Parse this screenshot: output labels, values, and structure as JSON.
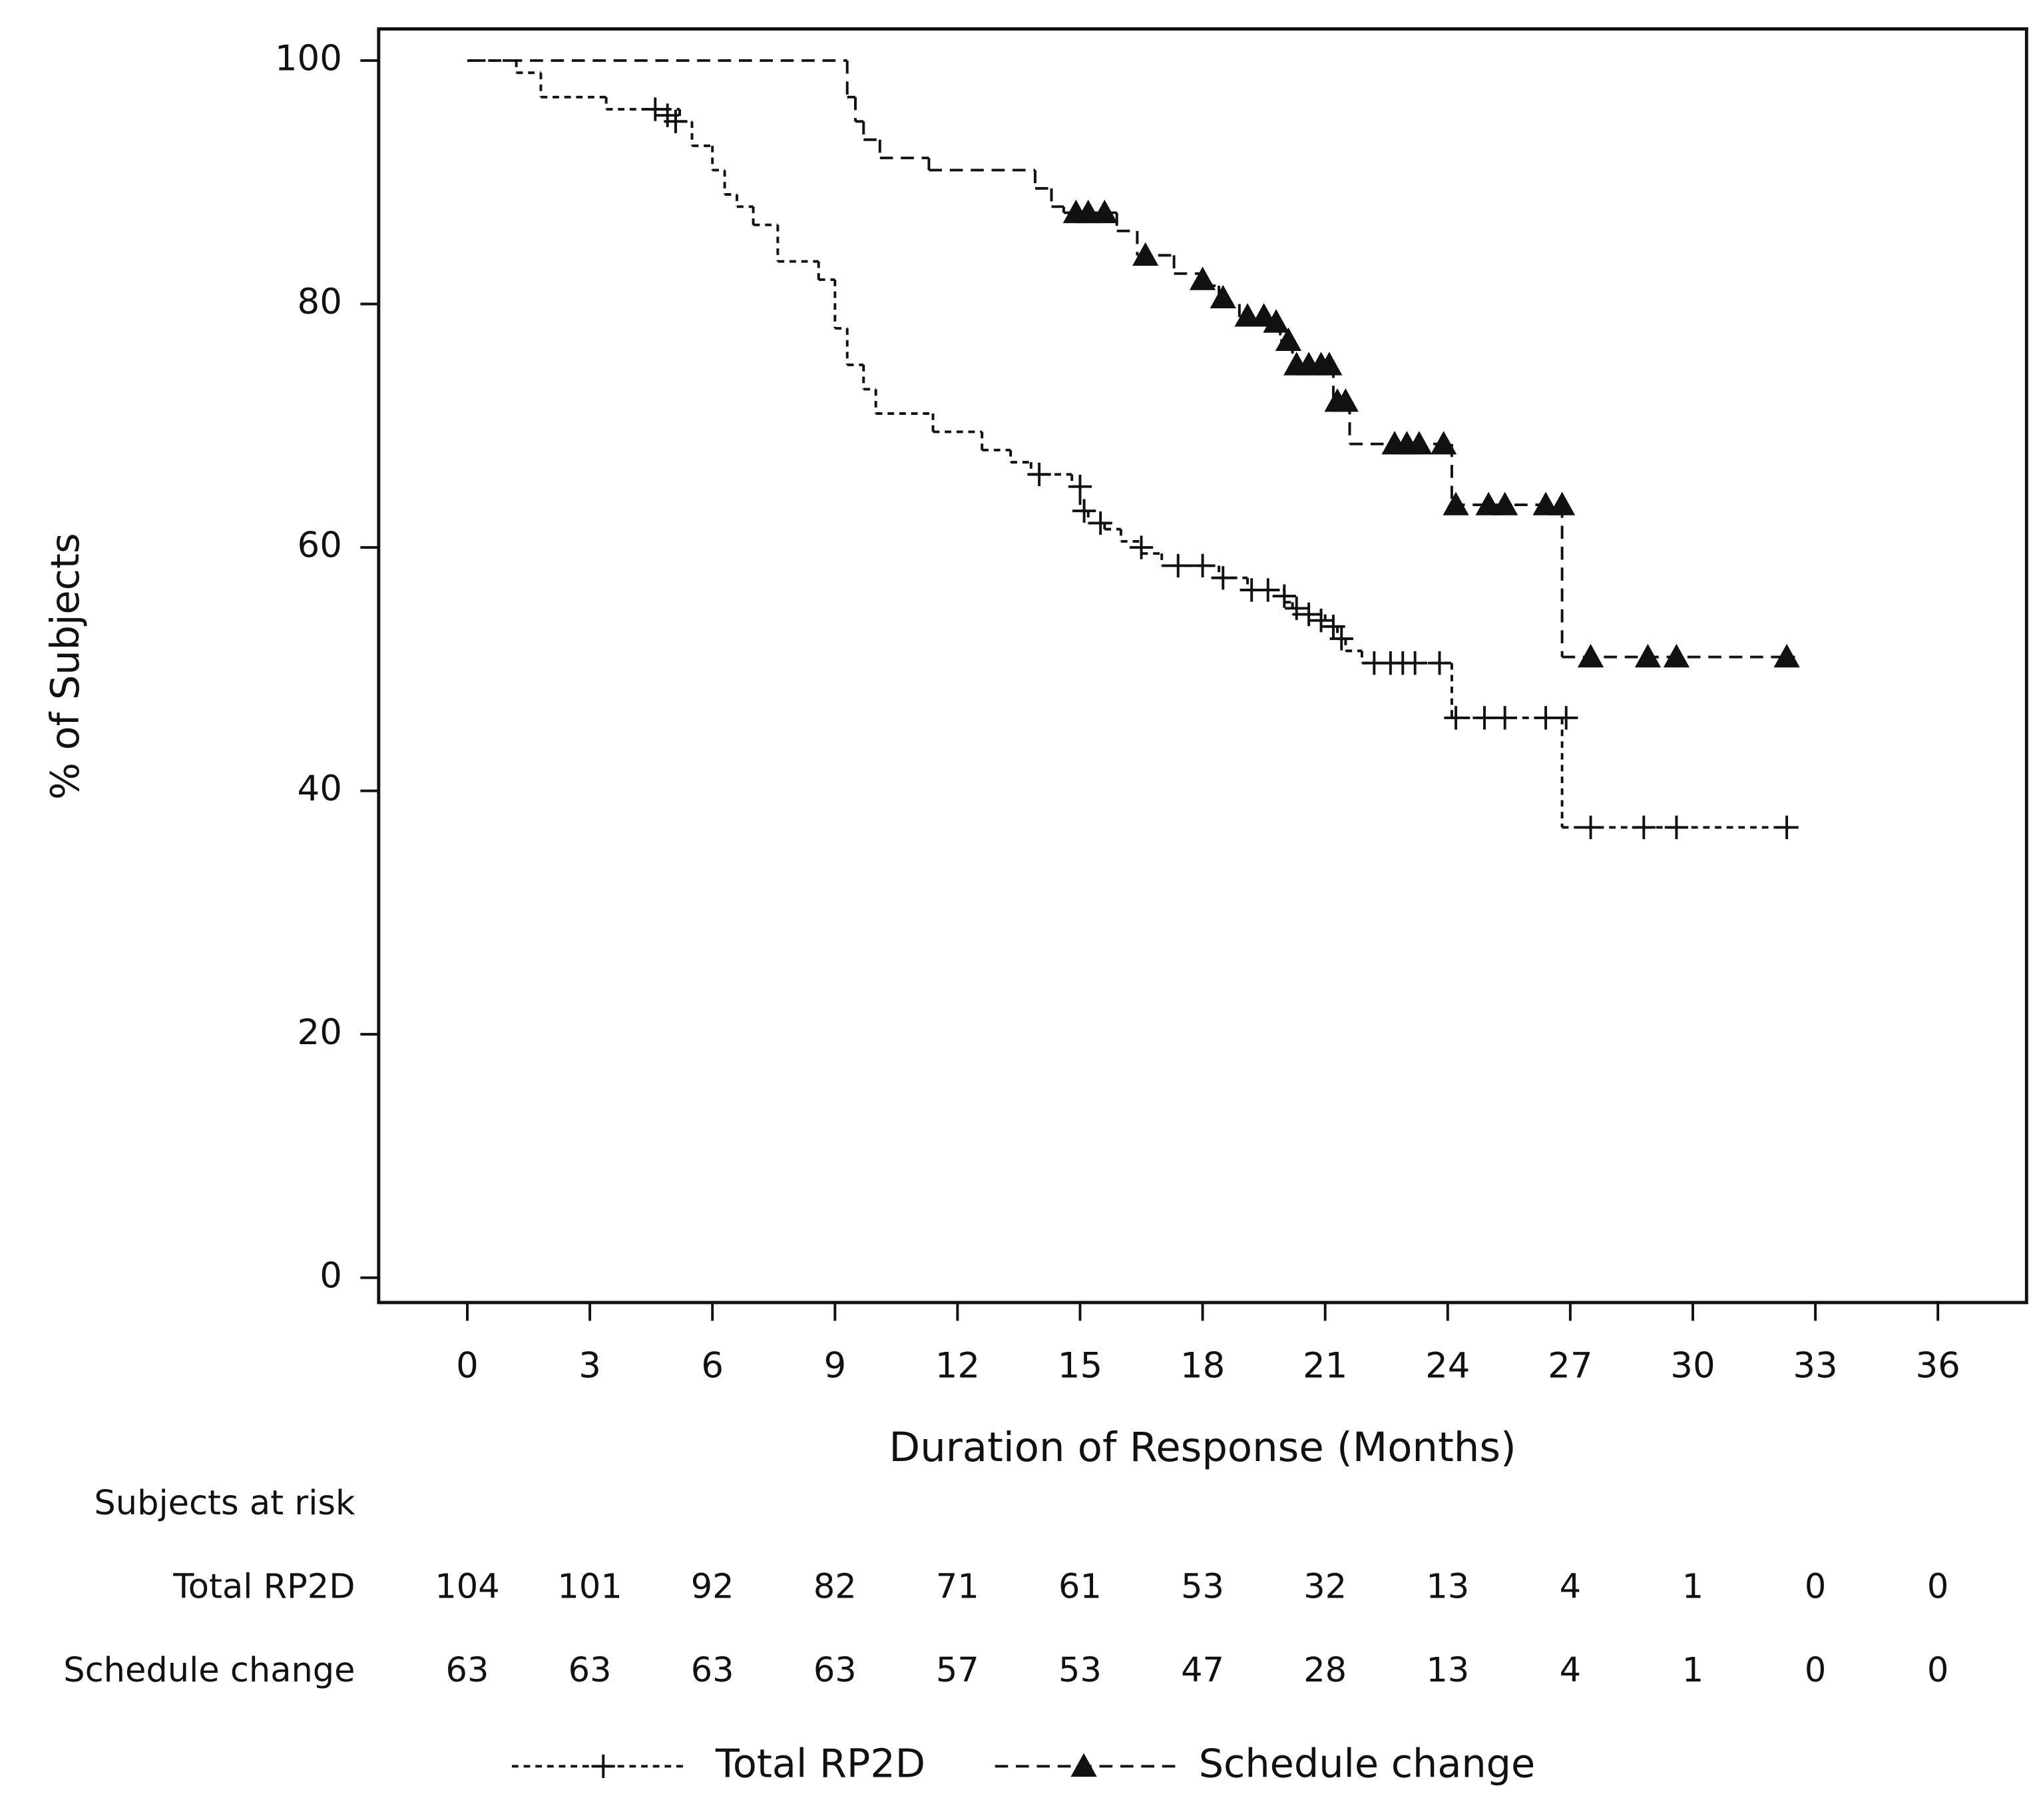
{
  "chart_data": {
    "type": "kaplan-meier",
    "x_label": "Duration of Response (Months)",
    "y_label": "% of Subjects",
    "xlim": [
      -2.17,
      38.17
    ],
    "ylim": [
      -2.04,
      102.6
    ],
    "xticks": [
      0,
      3,
      6,
      9,
      12,
      15,
      18,
      21,
      24,
      27,
      30,
      33,
      36
    ],
    "yticks": [
      0,
      20,
      40,
      60,
      80,
      100
    ],
    "series": [
      {
        "name": "Total RP2D",
        "color": "#111111",
        "marker": "plus",
        "dash": "5 4",
        "x": [
          0,
          1.2,
          1.8,
          3.4,
          5.2,
          5.5,
          6.0,
          6.3,
          6.6,
          7.0,
          7.6,
          8.6,
          9.0,
          9.3,
          9.7,
          10.0,
          11.4,
          12.6,
          13.3,
          13.8,
          14.8,
          15.0,
          15.2,
          15.6,
          16.0,
          16.5,
          17.0,
          18.4,
          19.1,
          20.0,
          20.2,
          21.0,
          21.3,
          21.5,
          21.9,
          24.1,
          26.8,
          32.5
        ],
        "values": [
          100,
          99,
          97,
          96,
          95,
          93,
          91,
          89,
          88,
          86.5,
          83.5,
          82,
          78,
          75,
          73,
          71,
          69.5,
          68,
          67,
          66,
          65,
          63,
          62,
          61.5,
          60.5,
          59.5,
          58.5,
          57.5,
          56.5,
          55.5,
          54.5,
          53.5,
          52.5,
          51.5,
          50.5,
          46,
          37,
          37
        ],
        "censor_x": [
          4.6,
          4.9,
          5.1,
          14.0,
          15.0,
          15.1,
          15.5,
          16.5,
          17.4,
          18.0,
          18.5,
          19.2,
          19.6,
          20.0,
          20.3,
          20.6,
          20.9,
          21.2,
          21.4,
          22.2,
          22.6,
          22.9,
          23.2,
          23.8,
          24.2,
          24.9,
          25.4,
          26.4,
          26.9,
          27.5,
          28.8,
          29.6,
          32.3
        ],
        "censor_values": [
          96,
          95.5,
          95,
          66,
          65,
          63,
          62,
          60,
          58.5,
          58.5,
          57.5,
          56.5,
          56.5,
          56,
          55,
          54.5,
          54,
          53.5,
          52.5,
          50.5,
          50.5,
          50.5,
          50.5,
          50.5,
          46,
          46,
          46,
          46,
          46,
          37,
          37,
          37,
          37
        ]
      },
      {
        "name": "Schedule change",
        "color": "#111111",
        "marker": "triangle",
        "dash": "10 6",
        "x": [
          0,
          9.3,
          9.5,
          9.7,
          10.1,
          11.3,
          13.9,
          14.3,
          14.6,
          15.9,
          16.4,
          17.3,
          18.0,
          18.4,
          18.9,
          19.9,
          20.2,
          21.2,
          21.6,
          24.1,
          26.8,
          32.5
        ],
        "values": [
          100,
          97,
          95,
          93.5,
          92,
          91,
          89.5,
          88,
          87.5,
          86,
          84,
          82.5,
          81.5,
          80,
          78.5,
          77,
          75,
          72,
          68.5,
          63.5,
          51,
          51
        ],
        "censor_x": [
          14.9,
          15.2,
          15.6,
          16.6,
          18.0,
          18.5,
          19.1,
          19.5,
          19.8,
          20.1,
          20.3,
          20.6,
          20.9,
          21.1,
          21.3,
          21.5,
          22.7,
          23.0,
          23.3,
          23.9,
          24.2,
          25.0,
          25.4,
          26.4,
          26.8,
          27.5,
          28.9,
          29.6,
          32.3
        ],
        "censor_values": [
          87.5,
          87.5,
          87.5,
          84,
          82,
          80.5,
          79,
          79,
          78.5,
          77,
          75,
          75,
          75,
          75,
          72,
          72,
          68.5,
          68.5,
          68.5,
          68.5,
          63.5,
          63.5,
          63.5,
          63.5,
          63.5,
          51,
          51,
          51,
          51
        ]
      }
    ],
    "risk_table": {
      "title": "Subjects at risk",
      "rows": [
        {
          "name": "Total RP2D",
          "values": [
            104,
            101,
            92,
            82,
            71,
            61,
            53,
            32,
            13,
            4,
            1,
            0,
            0
          ]
        },
        {
          "name": "Schedule change",
          "values": [
            63,
            63,
            63,
            63,
            57,
            53,
            47,
            28,
            13,
            4,
            1,
            0,
            0
          ]
        }
      ]
    }
  }
}
